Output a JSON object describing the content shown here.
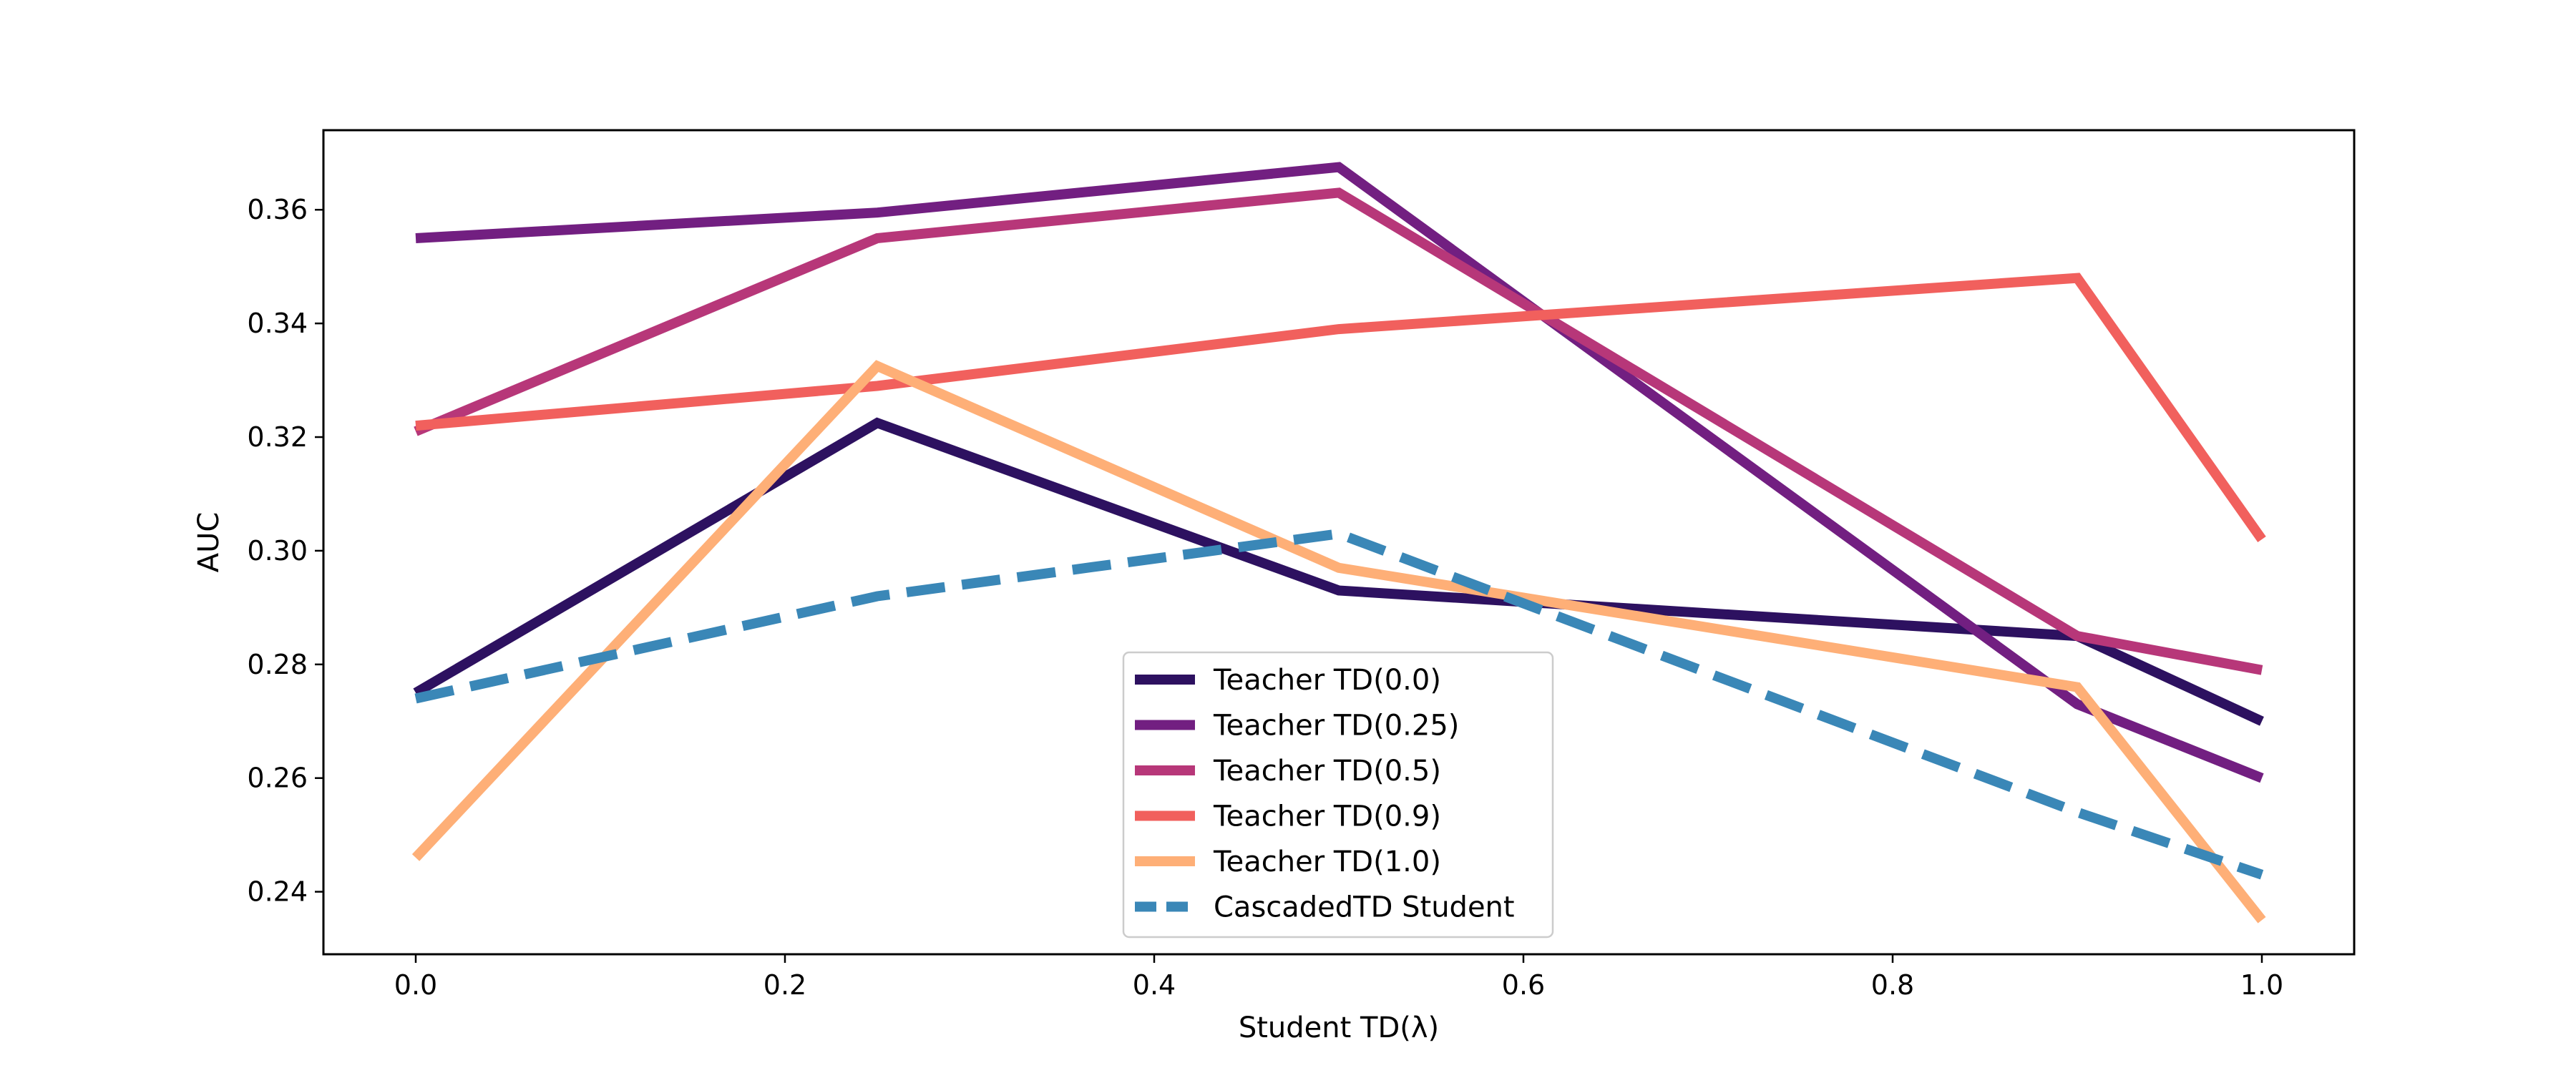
{
  "chart_data": {
    "type": "line",
    "xlabel": "Student TD(λ)",
    "ylabel": "AUC",
    "xlim": [
      -0.05,
      1.05
    ],
    "ylim": [
      0.229,
      0.374
    ],
    "x": [
      0.0,
      0.25,
      0.5,
      0.9,
      1.0
    ],
    "x_ticks": [
      "0.0",
      "0.2",
      "0.4",
      "0.6",
      "0.8",
      "1.0"
    ],
    "y_ticks": [
      "0.24",
      "0.26",
      "0.28",
      "0.30",
      "0.32",
      "0.34",
      "0.36"
    ],
    "grid": false,
    "legend_position": "bottom-center",
    "series": [
      {
        "name": "Teacher TD(0.0)",
        "color": "#2d1160",
        "dash": false,
        "values": [
          0.275,
          0.3225,
          0.293,
          0.285,
          0.27
        ]
      },
      {
        "name": "Teacher TD(0.25)",
        "color": "#721f81",
        "dash": false,
        "values": [
          0.355,
          0.3595,
          0.3675,
          0.273,
          0.26
        ]
      },
      {
        "name": "Teacher TD(0.5)",
        "color": "#b73779",
        "dash": false,
        "values": [
          0.321,
          0.355,
          0.363,
          0.285,
          0.279
        ]
      },
      {
        "name": "Teacher TD(0.9)",
        "color": "#f1605d",
        "dash": false,
        "values": [
          0.322,
          0.329,
          0.339,
          0.348,
          0.302
        ]
      },
      {
        "name": "Teacher TD(1.0)",
        "color": "#feaf77",
        "dash": false,
        "values": [
          0.246,
          0.3325,
          0.297,
          0.276,
          0.235
        ]
      },
      {
        "name": "CascadedTD Student",
        "color": "#3a87b7",
        "dash": true,
        "values": [
          0.274,
          0.292,
          0.303,
          0.254,
          0.243
        ]
      }
    ]
  }
}
